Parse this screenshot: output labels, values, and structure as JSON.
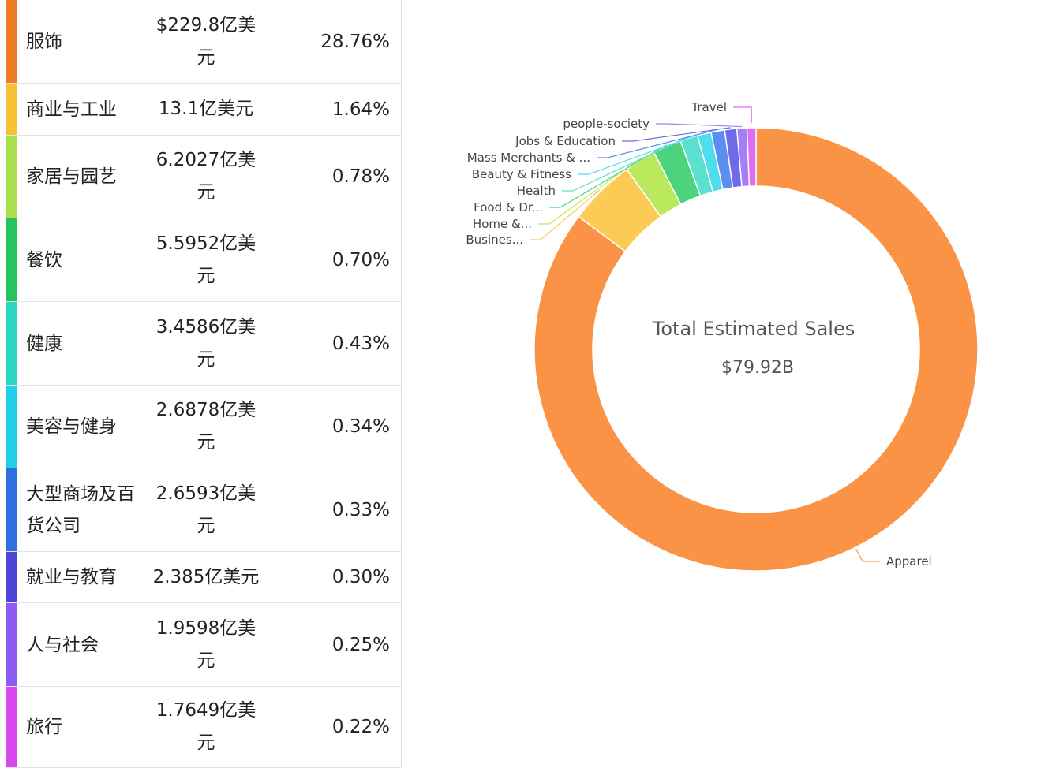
{
  "table": {
    "rows": [
      {
        "name": "服饰",
        "amount": "$229.8亿美元",
        "pct": "28.76%",
        "color": "#f07c2a"
      },
      {
        "name": "商业与工业",
        "amount": "13.1亿美元",
        "pct": "1.64%",
        "color": "#f6c233"
      },
      {
        "name": "家居与园艺",
        "amount": "6.2027亿美元",
        "pct": "0.78%",
        "color": "#a9e04b"
      },
      {
        "name": "餐饮",
        "amount": "5.5952亿美元",
        "pct": "0.70%",
        "color": "#27c35f"
      },
      {
        "name": "健康",
        "amount": "3.4586亿美元",
        "pct": "0.43%",
        "color": "#2dd4c0"
      },
      {
        "name": "美容与健身",
        "amount": "2.6878亿美元",
        "pct": "0.34%",
        "color": "#22cfe8"
      },
      {
        "name": "大型商场及百货公司",
        "amount": "2.6593亿美元",
        "pct": "0.33%",
        "color": "#2f6fe0"
      },
      {
        "name": "就业与教育",
        "amount": "2.385亿美元",
        "pct": "0.30%",
        "color": "#4f46d6"
      },
      {
        "name": "人与社会",
        "amount": "1.9598亿美元",
        "pct": "0.25%",
        "color": "#8b5cf6"
      },
      {
        "name": "旅行",
        "amount": "1.7649亿美元",
        "pct": "0.22%",
        "color": "#d946ef"
      }
    ]
  },
  "chart_data": {
    "type": "pie",
    "donut": true,
    "center_title": "Total Estimated Sales",
    "center_value": "$79.92B",
    "slices": [
      {
        "label": "Apparel",
        "value": 22.98,
        "color": "#fb9347"
      },
      {
        "label": "Busines...",
        "value": 1.31,
        "color": "#fccb55"
      },
      {
        "label": "Home &...",
        "value": 0.62027,
        "color": "#bbe95d"
      },
      {
        "label": "Food & Dr...",
        "value": 0.55952,
        "color": "#4cd37b"
      },
      {
        "label": "Health",
        "value": 0.34586,
        "color": "#5be0cf"
      },
      {
        "label": "Beauty & Fitness",
        "value": 0.26878,
        "color": "#4fdcef"
      },
      {
        "label": "Mass Merchants & ...",
        "value": 0.26593,
        "color": "#5b8ef0"
      },
      {
        "label": "Jobs & Education",
        "value": 0.2385,
        "color": "#6f6ae8"
      },
      {
        "label": "people-society",
        "value": 0.19598,
        "color": "#a37ef7"
      },
      {
        "label": "Travel",
        "value": 0.17649,
        "color": "#e06cf2"
      }
    ]
  }
}
